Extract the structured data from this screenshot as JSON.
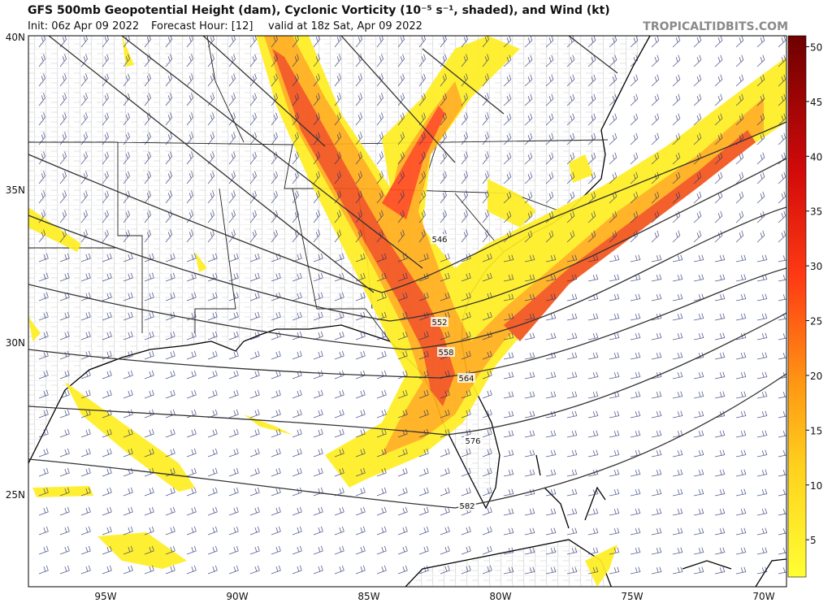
{
  "header": {
    "title": "GFS 500mb Geopotential Height (dam), Cyclonic Vorticity (10⁻⁵ s⁻¹, shaded), and Wind (kt)",
    "init": "Init: 06z Apr 09 2022",
    "forecast_hour": "Forecast Hour: [12]",
    "valid": "valid at 18z Sat, Apr 09 2022",
    "brand": "TROPICALTIDBITS.COM"
  },
  "map": {
    "latitude_labels": [
      "40N",
      "35N",
      "30N",
      "25N"
    ],
    "longitude_labels": [
      "95W",
      "90W",
      "85W",
      "80W",
      "75W",
      "70W"
    ],
    "contour_labels": [
      546,
      552,
      558,
      564,
      576,
      582
    ]
  },
  "colorbar": {
    "range": [
      1.6,
      51
    ],
    "ticks": [
      5,
      10,
      15,
      20,
      25,
      30,
      35,
      40,
      45,
      50
    ]
  }
}
